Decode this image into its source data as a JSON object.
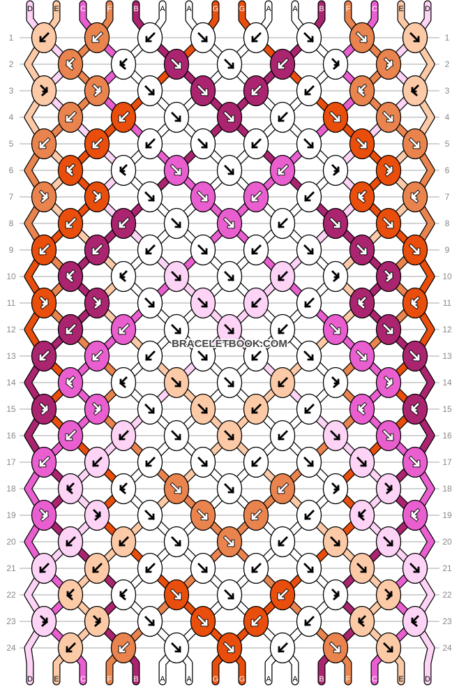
{
  "strings": {
    "top": [
      "D",
      "E",
      "C",
      "F",
      "B",
      "A",
      "A",
      "G",
      "G",
      "A",
      "A",
      "B",
      "F",
      "C",
      "E",
      "D"
    ],
    "bottom": [
      "D",
      "E",
      "C",
      "F",
      "B",
      "A",
      "A",
      "G",
      "G",
      "A",
      "A",
      "B",
      "F",
      "C",
      "E",
      "D"
    ]
  },
  "colors": {
    "A": "#ffffff",
    "B": "#ab2470",
    "C": "#ea5fd0",
    "D": "#fdd3f6",
    "E": "#fdcaa8",
    "F": "#ea844e",
    "G": "#ea4e0c"
  },
  "dark_colors": [
    "B",
    "C",
    "F",
    "G"
  ],
  "rows": [
    {
      "number": "1",
      "knots": [
        "b",
        "b",
        "b",
        "f",
        "b",
        "f",
        "f",
        "f"
      ]
    },
    {
      "number": "2",
      "knots": [
        "bf",
        "bf",
        "f",
        "f",
        "b",
        "fb",
        "fb"
      ]
    },
    {
      "number": "3",
      "knots": [
        "fb",
        "fb",
        "f",
        "f",
        "b",
        "b",
        "bf",
        "bf"
      ]
    },
    {
      "number": "4",
      "knots": [
        "b",
        "b",
        "f",
        "f",
        "b",
        "f",
        "f"
      ]
    },
    {
      "number": "5",
      "knots": [
        "b",
        "b",
        "b",
        "f",
        "b",
        "f",
        "f",
        "f"
      ]
    },
    {
      "number": "6",
      "knots": [
        "bf",
        "bf",
        "f",
        "f",
        "b",
        "fb",
        "fb"
      ]
    },
    {
      "number": "7",
      "knots": [
        "fb",
        "fb",
        "f",
        "f",
        "b",
        "b",
        "bf",
        "bf"
      ]
    },
    {
      "number": "8",
      "knots": [
        "b",
        "b",
        "f",
        "f",
        "b",
        "f",
        "f"
      ]
    },
    {
      "number": "9",
      "knots": [
        "b",
        "b",
        "b",
        "f",
        "b",
        "f",
        "f",
        "f"
      ]
    },
    {
      "number": "10",
      "knots": [
        "bf",
        "bf",
        "f",
        "f",
        "b",
        "fb",
        "fb"
      ]
    },
    {
      "number": "11",
      "knots": [
        "fb",
        "fb",
        "f",
        "f",
        "b",
        "b",
        "bf",
        "bf"
      ]
    },
    {
      "number": "12",
      "knots": [
        "b",
        "b",
        "f",
        "f",
        "b",
        "f",
        "f"
      ]
    },
    {
      "number": "13",
      "knots": [
        "b",
        "b",
        "b",
        "f",
        "b",
        "f",
        "f",
        "f"
      ]
    },
    {
      "number": "14",
      "knots": [
        "bf",
        "bf",
        "f",
        "f",
        "b",
        "fb",
        "fb"
      ]
    },
    {
      "number": "15",
      "knots": [
        "fb",
        "fb",
        "f",
        "f",
        "b",
        "b",
        "bf",
        "bf"
      ]
    },
    {
      "number": "16",
      "knots": [
        "b",
        "b",
        "f",
        "f",
        "b",
        "f",
        "f"
      ]
    },
    {
      "number": "17",
      "knots": [
        "b",
        "b",
        "b",
        "f",
        "b",
        "f",
        "f",
        "f"
      ]
    },
    {
      "number": "18",
      "knots": [
        "bf",
        "bf",
        "f",
        "f",
        "b",
        "fb",
        "fb"
      ]
    },
    {
      "number": "19",
      "knots": [
        "fb",
        "fb",
        "f",
        "f",
        "b",
        "b",
        "bf",
        "bf"
      ]
    },
    {
      "number": "20",
      "knots": [
        "b",
        "b",
        "f",
        "f",
        "b",
        "f",
        "f"
      ]
    },
    {
      "number": "21",
      "knots": [
        "b",
        "b",
        "b",
        "f",
        "b",
        "f",
        "f",
        "f"
      ]
    },
    {
      "number": "22",
      "knots": [
        "bf",
        "bf",
        "f",
        "f",
        "b",
        "fb",
        "fb"
      ]
    },
    {
      "number": "23",
      "knots": [
        "fb",
        "fb",
        "f",
        "f",
        "b",
        "b",
        "bf",
        "bf"
      ]
    },
    {
      "number": "24",
      "knots": [
        "b",
        "b",
        "f",
        "f",
        "b",
        "f",
        "f"
      ]
    }
  ],
  "watermark": "BRACELETBOOK.COM"
}
